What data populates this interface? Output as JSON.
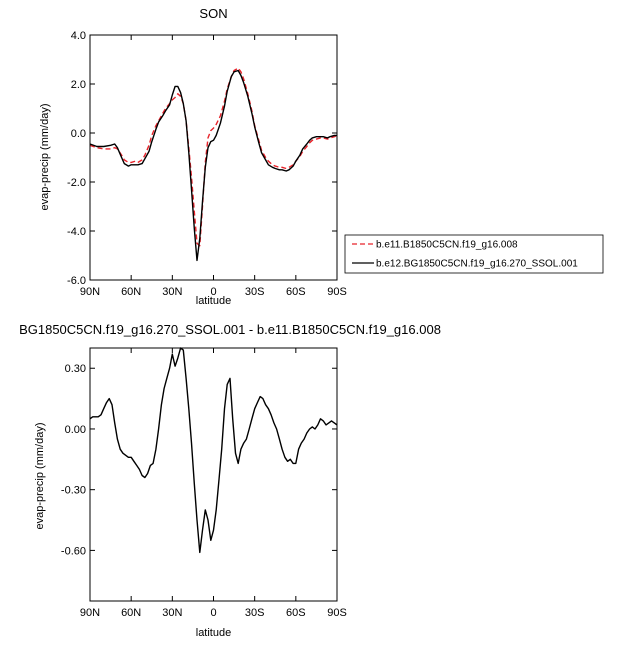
{
  "chart_data": [
    {
      "type": "line",
      "title": "SON",
      "xlabel": "latitude",
      "ylabel": "evap-precip (mm/day)",
      "xlim": [
        90,
        -90
      ],
      "ylim": [
        -6,
        4
      ],
      "x_ticks": [
        90,
        60,
        30,
        0,
        -30,
        -60,
        -90
      ],
      "x_tick_labels": [
        "90N",
        "60N",
        "30N",
        "0",
        "30S",
        "60S",
        "90S"
      ],
      "y_ticks": [
        4,
        2,
        0,
        -2,
        -4,
        -6
      ],
      "y_tick_labels": [
        "4.0",
        "2.0",
        "0.0",
        "-2.0",
        "-4.0",
        "-6.0"
      ],
      "legend": "right",
      "series": [
        {
          "name": "b.e11.B1850C5CN.f19_g16.008",
          "color": "#e8232a",
          "dash": "dashed",
          "x": [
            90,
            85,
            80,
            75,
            72,
            70,
            67,
            65,
            62,
            60,
            57,
            55,
            52,
            50,
            47,
            45,
            42,
            40,
            37,
            35,
            32,
            30,
            28,
            26,
            24,
            22,
            20,
            18,
            16,
            14,
            12,
            10,
            8,
            6,
            4,
            2,
            0,
            -2,
            -5,
            -8,
            -10,
            -13,
            -15,
            -18,
            -20,
            -22,
            -25,
            -28,
            -30,
            -33,
            -35,
            -38,
            -40,
            -43,
            -45,
            -48,
            -50,
            -53,
            -55,
            -58,
            -60,
            -63,
            -65,
            -68,
            -70,
            -72,
            -75,
            -78,
            -80,
            -83,
            -85,
            -88,
            -90
          ],
          "y": [
            -0.5,
            -0.6,
            -0.65,
            -0.65,
            -0.6,
            -0.65,
            -0.9,
            -1.1,
            -1.2,
            -1.2,
            -1.15,
            -1.2,
            -1.1,
            -0.9,
            -0.5,
            -0.1,
            0.3,
            0.5,
            0.8,
            1.0,
            1.2,
            1.35,
            1.45,
            1.6,
            1.5,
            1.2,
            0.5,
            -0.6,
            -1.8,
            -3.2,
            -4.5,
            -4.6,
            -3.0,
            -1.2,
            -0.2,
            0.1,
            0.2,
            0.35,
            0.7,
            1.3,
            1.8,
            2.3,
            2.55,
            2.65,
            2.5,
            2.2,
            1.6,
            0.9,
            0.3,
            -0.3,
            -0.7,
            -1.0,
            -1.15,
            -1.3,
            -1.35,
            -1.4,
            -1.4,
            -1.45,
            -1.4,
            -1.3,
            -1.15,
            -0.95,
            -0.75,
            -0.55,
            -0.4,
            -0.3,
            -0.25,
            -0.2,
            -0.2,
            -0.25,
            -0.2,
            -0.15,
            -0.1
          ]
        },
        {
          "name": "b.e12.BG1850C5CN.f19_g16.270_SSOL.001",
          "color": "#000000",
          "dash": "solid",
          "x": [
            90,
            85,
            80,
            75,
            72,
            70,
            67,
            65,
            62,
            60,
            57,
            55,
            52,
            50,
            47,
            45,
            42,
            40,
            37,
            35,
            32,
            30,
            28,
            26,
            24,
            22,
            20,
            18,
            16,
            14,
            12,
            10,
            8,
            6,
            4,
            2,
            0,
            -2,
            -5,
            -8,
            -10,
            -13,
            -15,
            -18,
            -20,
            -22,
            -25,
            -28,
            -30,
            -33,
            -35,
            -38,
            -40,
            -43,
            -45,
            -48,
            -50,
            -53,
            -55,
            -58,
            -60,
            -63,
            -65,
            -68,
            -70,
            -72,
            -75,
            -78,
            -80,
            -83,
            -85,
            -88,
            -90
          ],
          "y": [
            -0.45,
            -0.55,
            -0.55,
            -0.5,
            -0.45,
            -0.6,
            -1.0,
            -1.25,
            -1.35,
            -1.3,
            -1.3,
            -1.3,
            -1.25,
            -1.05,
            -0.75,
            -0.35,
            0.15,
            0.45,
            0.7,
            0.9,
            1.15,
            1.55,
            1.9,
            1.9,
            1.65,
            1.2,
            0.5,
            -0.8,
            -2.3,
            -3.9,
            -5.2,
            -4.3,
            -2.8,
            -1.4,
            -0.6,
            -0.35,
            -0.3,
            -0.1,
            0.4,
            1.1,
            1.7,
            2.3,
            2.5,
            2.55,
            2.35,
            2.05,
            1.5,
            0.8,
            0.25,
            -0.4,
            -0.8,
            -1.1,
            -1.3,
            -1.4,
            -1.45,
            -1.5,
            -1.5,
            -1.55,
            -1.5,
            -1.35,
            -1.15,
            -0.9,
            -0.65,
            -0.45,
            -0.3,
            -0.2,
            -0.15,
            -0.15,
            -0.15,
            -0.2,
            -0.15,
            -0.1,
            -0.1
          ]
        }
      ]
    },
    {
      "type": "line",
      "title": "BG1850C5CN.f19_g16.270_SSOL.001 - b.e11.B1850C5CN.f19_g16.008",
      "xlabel": "latitude",
      "ylabel": "evap-precip (mm/day)",
      "xlim": [
        90,
        -90
      ],
      "ylim": [
        -0.85,
        0.4
      ],
      "x_ticks": [
        90,
        60,
        30,
        0,
        -30,
        -60,
        -90
      ],
      "x_tick_labels": [
        "90N",
        "60N",
        "30N",
        "0",
        "30S",
        "60S",
        "90S"
      ],
      "y_ticks": [
        0.3,
        0.0,
        -0.3,
        -0.6
      ],
      "y_tick_labels": [
        "0.30",
        "0.00",
        "-0.30",
        "-0.60"
      ],
      "series": [
        {
          "color": "#000000",
          "dash": "solid",
          "x": [
            90,
            88,
            86,
            84,
            82,
            80,
            78,
            76,
            74,
            72,
            70,
            68,
            66,
            64,
            62,
            60,
            58,
            56,
            54,
            52,
            50,
            48,
            46,
            44,
            42,
            40,
            38,
            36,
            34,
            32,
            30,
            28,
            26,
            24,
            22,
            20,
            18,
            16,
            14,
            12,
            10,
            8,
            6,
            4,
            2,
            0,
            -2,
            -4,
            -6,
            -8,
            -10,
            -12,
            -14,
            -16,
            -18,
            -20,
            -22,
            -24,
            -26,
            -28,
            -30,
            -32,
            -34,
            -36,
            -38,
            -40,
            -42,
            -44,
            -46,
            -48,
            -50,
            -52,
            -54,
            -56,
            -58,
            -60,
            -62,
            -64,
            -66,
            -68,
            -70,
            -72,
            -74,
            -76,
            -78,
            -80,
            -82,
            -84,
            -86,
            -88,
            -90
          ],
          "y": [
            0.05,
            0.06,
            0.06,
            0.06,
            0.07,
            0.1,
            0.13,
            0.15,
            0.12,
            0.03,
            -0.05,
            -0.1,
            -0.12,
            -0.13,
            -0.14,
            -0.14,
            -0.16,
            -0.18,
            -0.2,
            -0.23,
            -0.24,
            -0.22,
            -0.18,
            -0.17,
            -0.1,
            0.0,
            0.12,
            0.2,
            0.25,
            0.3,
            0.37,
            0.31,
            0.35,
            0.4,
            0.39,
            0.25,
            0.1,
            -0.07,
            -0.27,
            -0.45,
            -0.61,
            -0.5,
            -0.4,
            -0.45,
            -0.55,
            -0.5,
            -0.4,
            -0.25,
            -0.1,
            0.1,
            0.22,
            0.25,
            0.05,
            -0.12,
            -0.17,
            -0.1,
            -0.07,
            -0.05,
            0.0,
            0.05,
            0.1,
            0.13,
            0.16,
            0.15,
            0.12,
            0.1,
            0.07,
            0.03,
            0.0,
            -0.05,
            -0.1,
            -0.14,
            -0.16,
            -0.15,
            -0.17,
            -0.17,
            -0.1,
            -0.07,
            -0.05,
            -0.02,
            0.0,
            0.01,
            0.0,
            0.02,
            0.05,
            0.04,
            0.02,
            0.03,
            0.04,
            0.03,
            0.02
          ]
        }
      ]
    }
  ]
}
